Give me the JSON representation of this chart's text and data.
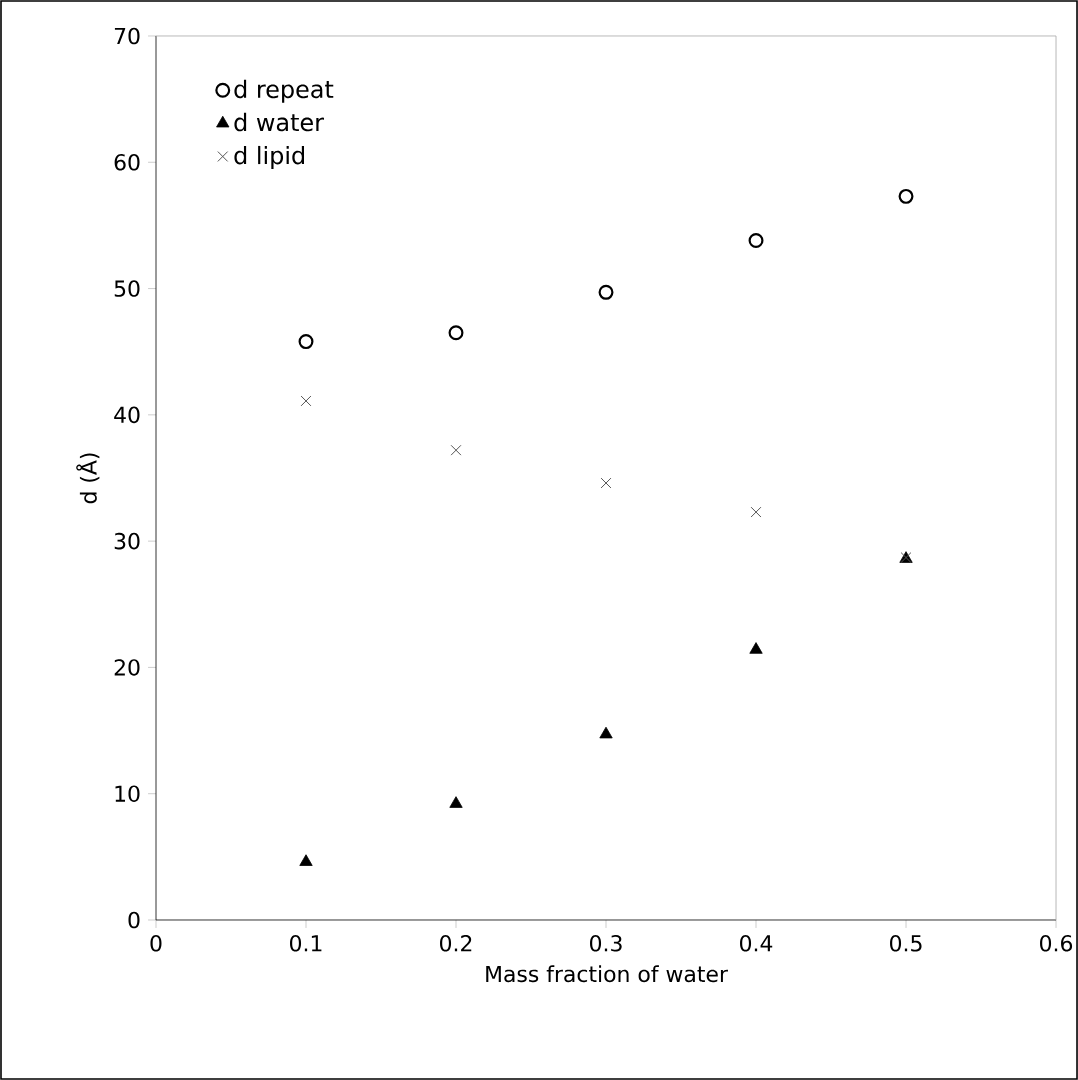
{
  "chart_data": {
    "type": "scatter",
    "xlabel": "Mass fraction of water",
    "ylabel": "d (Å)",
    "x": [
      0.1,
      0.2,
      0.3,
      0.4,
      0.5
    ],
    "series": [
      {
        "name": "d repeat",
        "color": "#000000",
        "marker": "circle",
        "values": [
          45.8,
          46.5,
          49.7,
          53.8,
          57.3
        ]
      },
      {
        "name": "d water",
        "color": "#000000",
        "marker": "triangle",
        "values": [
          4.6,
          9.2,
          14.7,
          21.4,
          28.6
        ]
      },
      {
        "name": "d lipid",
        "color": "#555555",
        "marker": "cross",
        "values": [
          41.1,
          37.2,
          34.6,
          32.3,
          28.7
        ]
      }
    ],
    "xlim": [
      0,
      0.6
    ],
    "xticks": [
      0,
      0.1,
      0.2,
      0.3,
      0.4,
      0.5,
      0.6
    ],
    "ylim": [
      0,
      70
    ],
    "yticks": [
      0,
      10,
      20,
      30,
      40,
      50,
      60,
      70
    ],
    "grid": false,
    "legend": "top left"
  }
}
